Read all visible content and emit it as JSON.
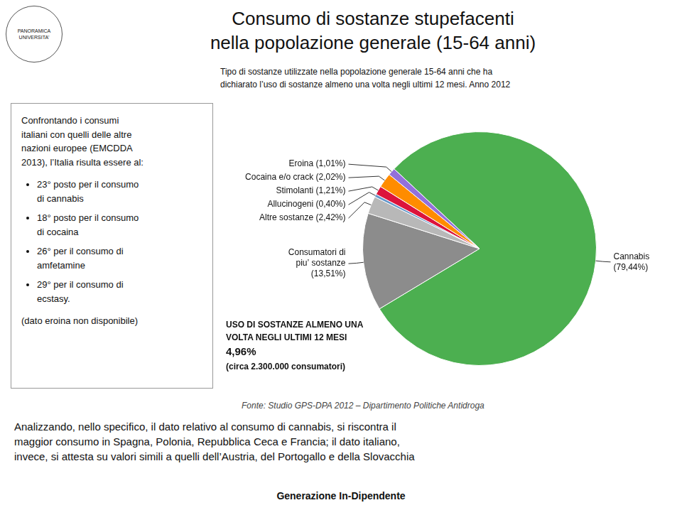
{
  "chart_data": {
    "type": "pie",
    "title": "Consumo di sostanze stupefacenti\nnella popolazione generale (15-64 anni)",
    "subtitle": "Tipo di sostanze utilizzate nella popolazione generale 15-64 anni che ha\ndichiarato l’uso di sostanze almeno una volta negli ultimi 12 mesi. Anno 2012",
    "categories": [
      "Cannabis\n(79,44%)",
      "Consumatori di\npiu’ sostanze\n(13,51%)",
      "Altre sostanze (2,42%)",
      "Allucinogeni (0,40%)",
      "Stimolanti (1,21%)",
      "Cocaina e/o crack (2,02%)",
      "Eroina (1,01%)"
    ],
    "values": [
      79.44,
      13.51,
      2.42,
      0.4,
      1.21,
      2.02,
      1.01
    ],
    "colors": [
      "#4caf50",
      "#8c8c8c",
      "#b8b8b8",
      "#6699cc",
      "#dc143c",
      "#ff8c00",
      "#9370db"
    ],
    "annotations": {
      "logo": [
        "PANORAMICA",
        "UNIVERSITA'"
      ],
      "left_box_intro": "Confrontando i consumi\nitaliani con quelli delle altre\nnazioni europee (EMCDDA\n2013), l’Italia risulta essere al:",
      "left_box_bullets": [
        "23° posto per il consumo\ndi cannabis",
        "18° posto per il consumo\ndi cocaina",
        "26° per il consumo di\namfetamine",
        "29° per il consumo di\necstasy."
      ],
      "left_box_footer": "(dato eroina non disponibile)",
      "summary": [
        "USO DI SOSTANZE ALMENO UNA",
        "VOLTA NEGLI ULTIMI 12 MESI",
        "4,96%",
        "(circa 2.300.000 consumatori)"
      ],
      "source": "Fonte: Studio GPS-DPA 2012 – Dipartimento Politiche Antidroga",
      "paragraph": [
        "Analizzando, nello specifico, il dato relativo al consumo di cannabis, si riscontra il",
        "maggior consumo in Spagna, Polonia, Repubblica Ceca e Francia; il dato italiano,",
        "invece, si attesta su valori simili a quelli dell’Austria, del Portogallo e della Slovacchia"
      ],
      "brand": "Generazione In-Dipendente"
    }
  }
}
